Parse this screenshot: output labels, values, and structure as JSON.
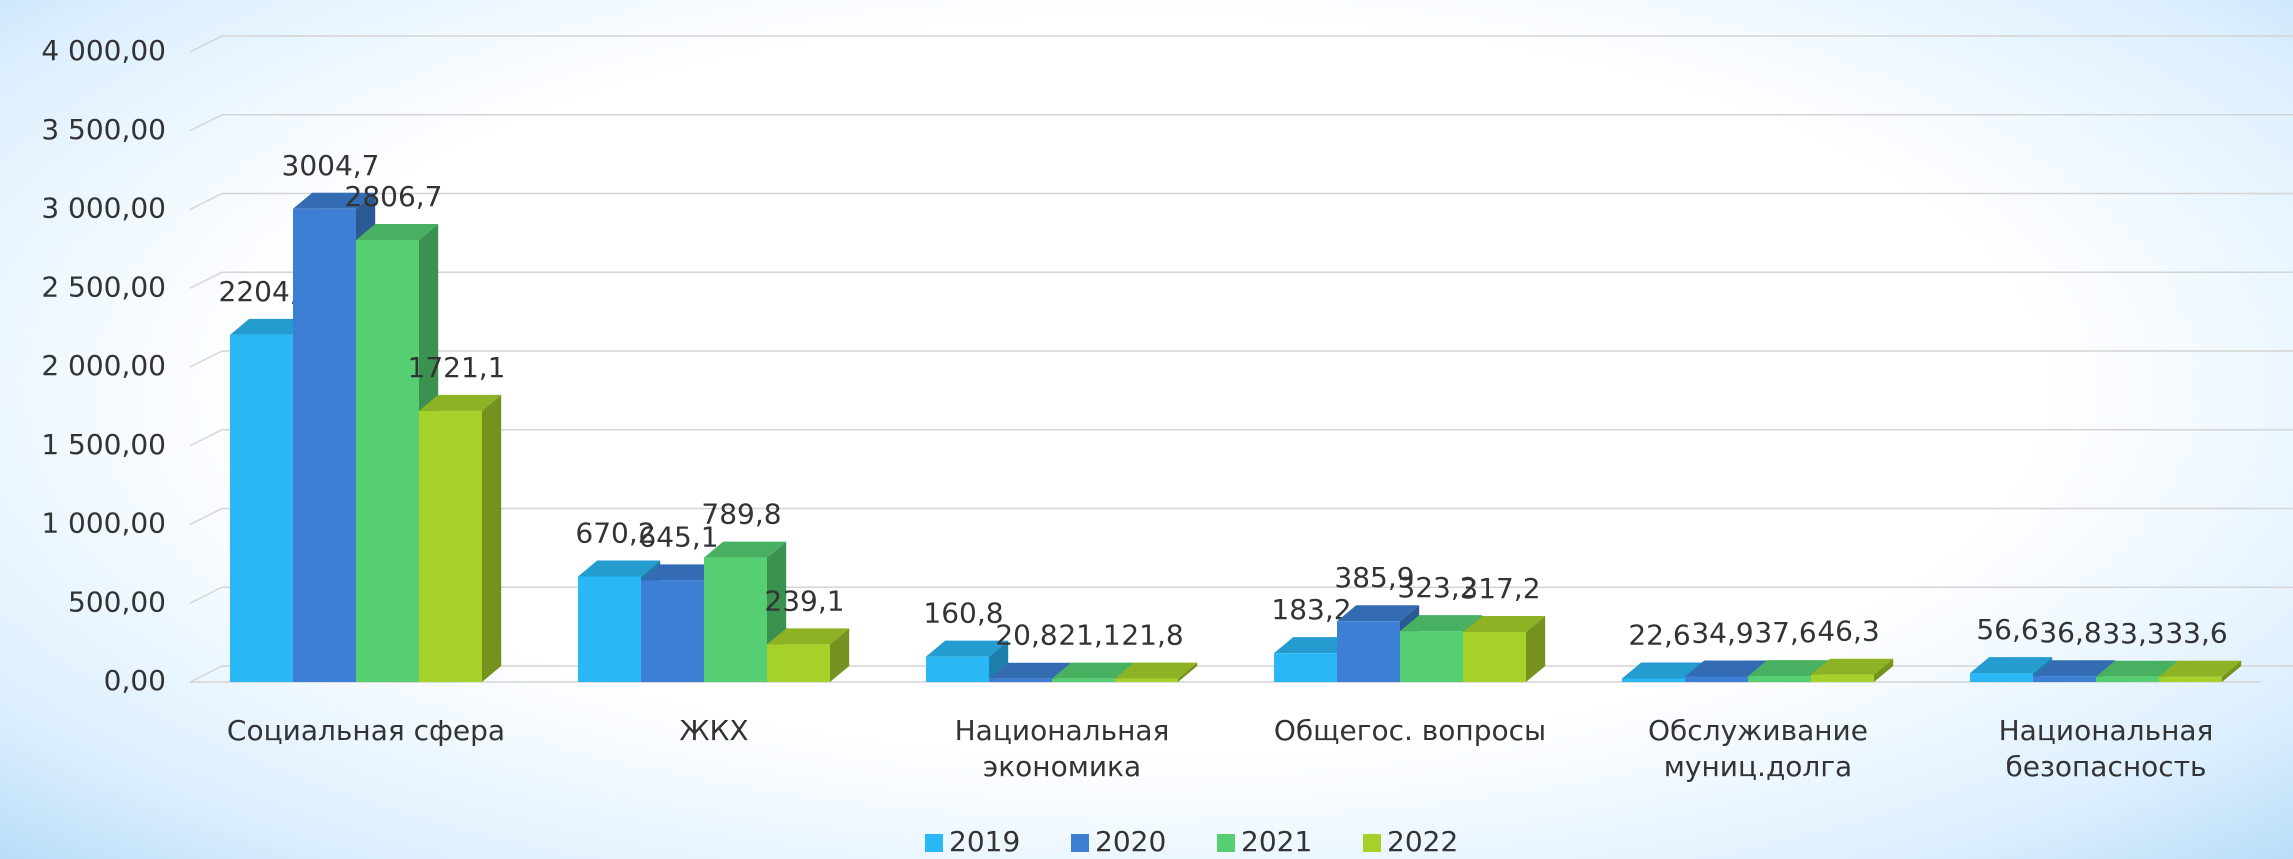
{
  "chart_data": {
    "type": "bar3d",
    "categories": [
      "Социальная сфера",
      "ЖКХ",
      "Национальная\nэкономика",
      "Общегос. вопросы",
      "Обслуживание\nмуниц.долга",
      "Национальная\nбезопасность"
    ],
    "series": [
      {
        "name": "2019",
        "color": "#2ab7f5",
        "values": [
          2204.0,
          670.2,
          160.8,
          183.2,
          22.6,
          56.6
        ],
        "value_labels": [
          "2204,0",
          "670,2",
          "160,8",
          "183,2",
          "22,6",
          "56,6"
        ]
      },
      {
        "name": "2020",
        "color": "#3d7fd4",
        "values": [
          3004.7,
          645.1,
          20.8,
          385.9,
          34.9,
          36.8
        ],
        "value_labels": [
          "3004,7",
          "645,1",
          "20,8",
          "385,9",
          "34,9",
          "36,8"
        ]
      },
      {
        "name": "2021",
        "color": "#55cf72",
        "values": [
          2806.7,
          789.8,
          21.1,
          323.2,
          37.6,
          33.3
        ],
        "value_labels": [
          "2806,7",
          "789,8",
          "21,1",
          "323,2",
          "37,6",
          "33,3"
        ]
      },
      {
        "name": "2022",
        "color": "#a6d12a",
        "values": [
          1721.1,
          239.1,
          21.8,
          317.2,
          46.3,
          33.6
        ],
        "value_labels": [
          "1721,1",
          "239,1",
          "21,8",
          "317,2",
          "46,3",
          "33,6"
        ]
      }
    ],
    "ylim": [
      0,
      4000
    ],
    "yticks": [
      {
        "value": 0,
        "label": "0,00"
      },
      {
        "value": 500,
        "label": "500,00"
      },
      {
        "value": 1000,
        "label": "1 000,00"
      },
      {
        "value": 1500,
        "label": "1 500,00"
      },
      {
        "value": 2000,
        "label": "2 000,00"
      },
      {
        "value": 2500,
        "label": "2 500,00"
      },
      {
        "value": 3000,
        "label": "3 000,00"
      },
      {
        "value": 3500,
        "label": "3 500,00"
      },
      {
        "value": 4000,
        "label": "4 000,00"
      }
    ],
    "grid": true,
    "legend": "bottom"
  }
}
